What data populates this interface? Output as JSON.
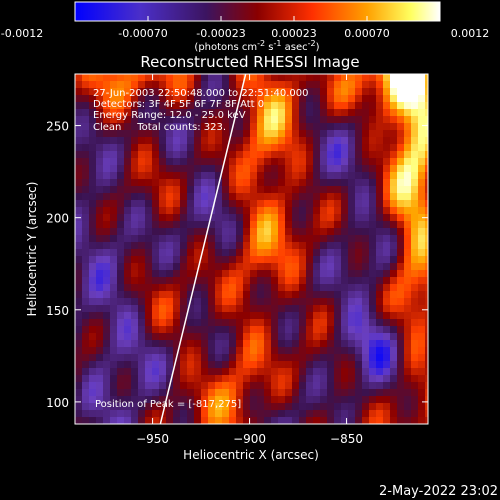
{
  "colorbar": {
    "ticks": [
      "-0.0012",
      "-0.00070",
      "-0.00023",
      "0.00023",
      "0.00070",
      "0.0012"
    ],
    "unit_parts": [
      "(photons cm",
      "-2",
      " s",
      "-1",
      " asec",
      "-2",
      ")"
    ],
    "colors": [
      "#0000ff",
      "#6a3fbf",
      "#3a1250",
      "#8a0000",
      "#ff4000",
      "#ffa500",
      "#ffff80",
      "#ffffff"
    ]
  },
  "chart_data": {
    "type": "heatmap",
    "title": "Reconstructed RHESSI Image",
    "xlabel": "Heliocentric X (arcsec)",
    "ylabel": "Heliocentric Y (arcsec)",
    "xlim": [
      -990,
      -808
    ],
    "ylim": [
      88,
      278
    ],
    "x_ticks": [
      -950,
      -900,
      -850
    ],
    "y_ticks": [
      100,
      150,
      200,
      250
    ],
    "x_tick_labels": [
      "−950",
      "−900",
      "−850"
    ],
    "y_tick_labels": [
      "100",
      "150",
      "200",
      "250"
    ],
    "annotations": [
      "27-Jun-2003 22:50:48.000 to 22:51:40.000",
      "Detectors: 3F 4F 5F 6F 7F 8F  Att 0",
      "Energy Range: 12.0 - 25.0 keV",
      "Clean     Total counts: 323."
    ],
    "peak_label": "Position of Peak = [-817,275]",
    "limb_line": [
      [
        -946,
        88
      ],
      [
        -902,
        278
      ]
    ]
  },
  "footer": {
    "timestamp": "2-May-2022 23:02"
  }
}
